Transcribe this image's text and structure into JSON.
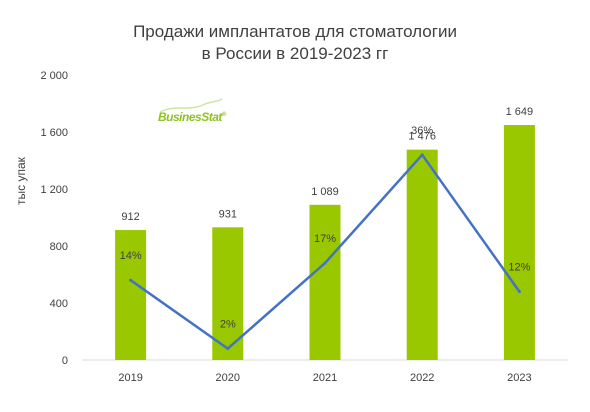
{
  "chart_data": {
    "type": "bar",
    "title_lines": [
      "Продажи имплантатов для стоматологии",
      "в России в 2019-2023 гг"
    ],
    "ylabel": "тыс упак",
    "categories": [
      "2019",
      "2020",
      "2021",
      "2022",
      "2023"
    ],
    "ylim": [
      0,
      2000
    ],
    "yticks": [
      0,
      400,
      800,
      1200,
      1600,
      2000
    ],
    "ytick_labels": [
      "0",
      "400",
      "800",
      "1 200",
      "1 600",
      "2 000"
    ],
    "bar_series": {
      "values": [
        912,
        931,
        1089,
        1476,
        1649
      ],
      "labels": [
        "912",
        "931",
        "1 089",
        "1 476",
        "1 649"
      ],
      "color": "#99c800"
    },
    "line_series": {
      "values": [
        14,
        2,
        17,
        36,
        12
      ],
      "labels": [
        "14%",
        "2%",
        "17%",
        "36%",
        "12%"
      ],
      "ylim": [
        0,
        50
      ],
      "color": "#4472c4"
    },
    "grid": false,
    "legend": "none"
  },
  "logo": {
    "text_a": "Busines",
    "text_b": "Stat",
    "mark": "®"
  }
}
